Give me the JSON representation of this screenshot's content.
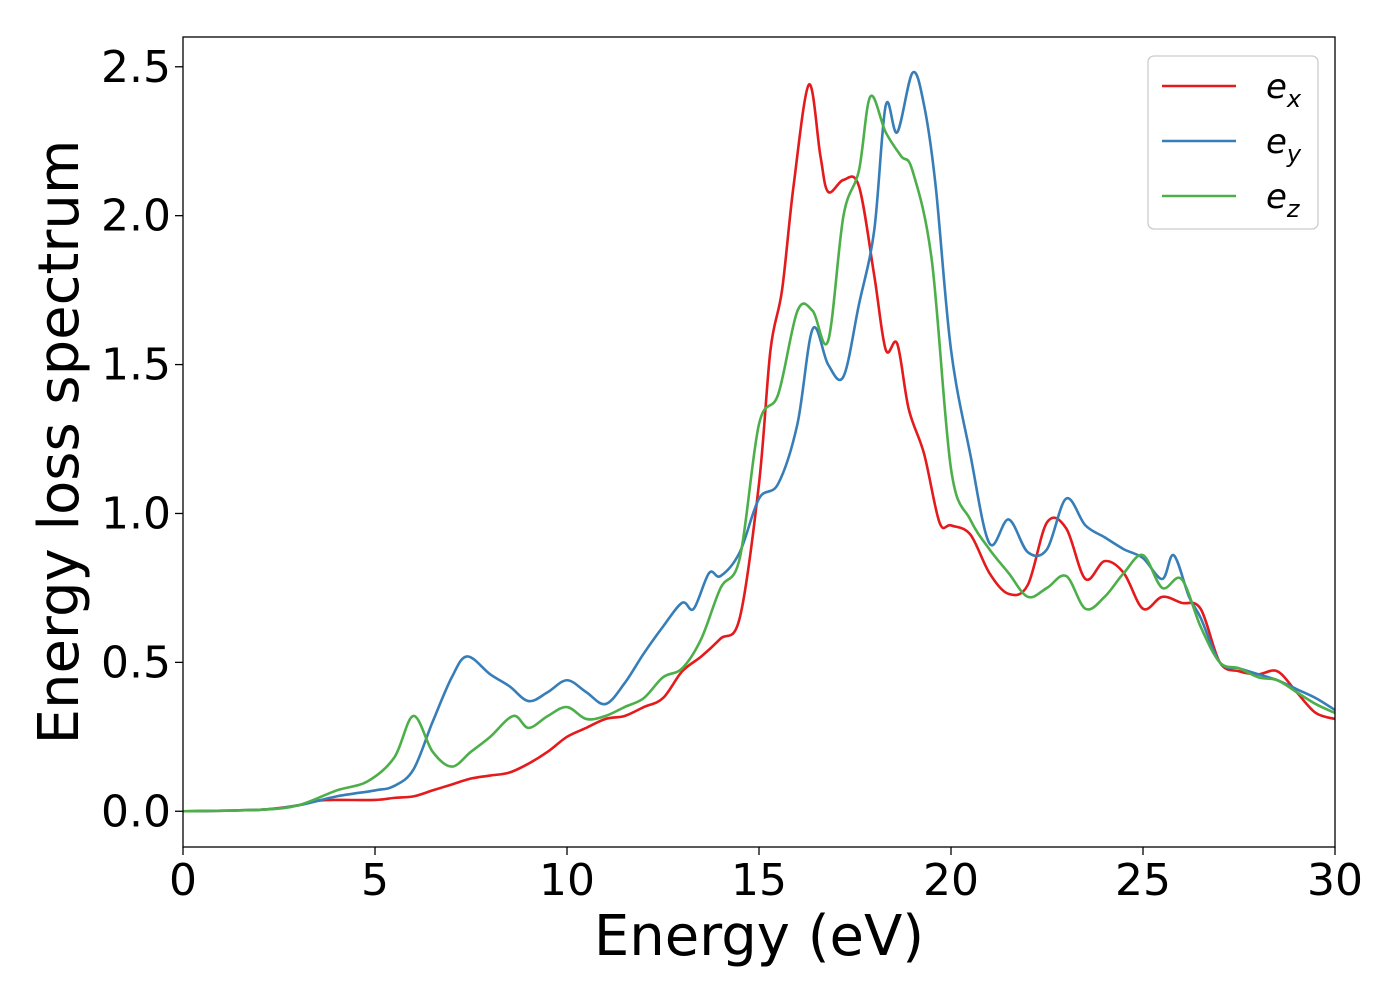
{
  "chart_data": {
    "type": "line",
    "title": "",
    "xlabel": "Energy (eV)",
    "ylabel": "Energy loss spectrum",
    "xlim": [
      0,
      30
    ],
    "ylim": [
      -0.12,
      2.6
    ],
    "xticks": [
      0,
      5,
      10,
      15,
      20,
      25,
      30
    ],
    "xtick_labels": [
      "0",
      "5",
      "10",
      "15",
      "20",
      "25",
      "30"
    ],
    "yticks": [
      0.0,
      0.5,
      1.0,
      1.5,
      2.0,
      2.5
    ],
    "ytick_labels": [
      "0.0",
      "0.5",
      "1.0",
      "1.5",
      "2.0",
      "2.5"
    ],
    "grid": false,
    "legend": "top-right",
    "series": [
      {
        "name": "e",
        "subscript": "x",
        "color": "#e41a1c",
        "points": [
          [
            0,
            0
          ],
          [
            2,
            0.005
          ],
          [
            3,
            0.02
          ],
          [
            3.5,
            0.035
          ],
          [
            4,
            0.038
          ],
          [
            5,
            0.038
          ],
          [
            5.5,
            0.045
          ],
          [
            6,
            0.05
          ],
          [
            6.5,
            0.07
          ],
          [
            7,
            0.09
          ],
          [
            7.5,
            0.11
          ],
          [
            8,
            0.12
          ],
          [
            8.5,
            0.13
          ],
          [
            9,
            0.16
          ],
          [
            9.5,
            0.2
          ],
          [
            10,
            0.25
          ],
          [
            10.5,
            0.28
          ],
          [
            11,
            0.31
          ],
          [
            11.5,
            0.32
          ],
          [
            12,
            0.35
          ],
          [
            12.5,
            0.38
          ],
          [
            13,
            0.47
          ],
          [
            13.5,
            0.52
          ],
          [
            14,
            0.58
          ],
          [
            14.5,
            0.65
          ],
          [
            15,
            1.1
          ],
          [
            15.3,
            1.55
          ],
          [
            15.6,
            1.75
          ],
          [
            15.9,
            2.1
          ],
          [
            16.3,
            2.44
          ],
          [
            16.6,
            2.2
          ],
          [
            16.8,
            2.08
          ],
          [
            17.2,
            2.12
          ],
          [
            17.6,
            2.1
          ],
          [
            18,
            1.8
          ],
          [
            18.3,
            1.55
          ],
          [
            18.6,
            1.57
          ],
          [
            18.9,
            1.35
          ],
          [
            19.3,
            1.2
          ],
          [
            19.7,
            0.97
          ],
          [
            20,
            0.96
          ],
          [
            20.5,
            0.93
          ],
          [
            21,
            0.8
          ],
          [
            21.5,
            0.73
          ],
          [
            22,
            0.76
          ],
          [
            22.5,
            0.97
          ],
          [
            23,
            0.95
          ],
          [
            23.5,
            0.78
          ],
          [
            24,
            0.84
          ],
          [
            24.5,
            0.8
          ],
          [
            25,
            0.68
          ],
          [
            25.5,
            0.72
          ],
          [
            26,
            0.7
          ],
          [
            26.5,
            0.68
          ],
          [
            27,
            0.5
          ],
          [
            27.5,
            0.47
          ],
          [
            28,
            0.46
          ],
          [
            28.5,
            0.47
          ],
          [
            29,
            0.4
          ],
          [
            29.5,
            0.33
          ],
          [
            30,
            0.31
          ]
        ]
      },
      {
        "name": "e",
        "subscript": "y",
        "color": "#377eb8",
        "points": [
          [
            0,
            0
          ],
          [
            2,
            0.005
          ],
          [
            3,
            0.02
          ],
          [
            4,
            0.05
          ],
          [
            5,
            0.07
          ],
          [
            5.5,
            0.085
          ],
          [
            6,
            0.14
          ],
          [
            6.5,
            0.3
          ],
          [
            7,
            0.45
          ],
          [
            7.4,
            0.52
          ],
          [
            8,
            0.46
          ],
          [
            8.5,
            0.42
          ],
          [
            9,
            0.37
          ],
          [
            9.5,
            0.4
          ],
          [
            10,
            0.44
          ],
          [
            10.5,
            0.4
          ],
          [
            11,
            0.36
          ],
          [
            11.5,
            0.43
          ],
          [
            12,
            0.53
          ],
          [
            12.5,
            0.62
          ],
          [
            13,
            0.7
          ],
          [
            13.3,
            0.68
          ],
          [
            13.7,
            0.8
          ],
          [
            14,
            0.79
          ],
          [
            14.5,
            0.87
          ],
          [
            15,
            1.05
          ],
          [
            15.5,
            1.1
          ],
          [
            16,
            1.3
          ],
          [
            16.4,
            1.62
          ],
          [
            16.8,
            1.5
          ],
          [
            17.2,
            1.46
          ],
          [
            17.6,
            1.7
          ],
          [
            18,
            1.95
          ],
          [
            18.3,
            2.37
          ],
          [
            18.6,
            2.28
          ],
          [
            19,
            2.48
          ],
          [
            19.3,
            2.37
          ],
          [
            19.6,
            2.1
          ],
          [
            20,
            1.55
          ],
          [
            20.5,
            1.2
          ],
          [
            21,
            0.9
          ],
          [
            21.5,
            0.98
          ],
          [
            22,
            0.87
          ],
          [
            22.5,
            0.88
          ],
          [
            23,
            1.05
          ],
          [
            23.5,
            0.96
          ],
          [
            24,
            0.92
          ],
          [
            24.5,
            0.88
          ],
          [
            25,
            0.85
          ],
          [
            25.5,
            0.78
          ],
          [
            25.8,
            0.86
          ],
          [
            26.2,
            0.72
          ],
          [
            26.5,
            0.65
          ],
          [
            27,
            0.5
          ],
          [
            27.5,
            0.48
          ],
          [
            28,
            0.46
          ],
          [
            28.5,
            0.44
          ],
          [
            29,
            0.41
          ],
          [
            29.5,
            0.38
          ],
          [
            30,
            0.34
          ]
        ]
      },
      {
        "name": "e",
        "subscript": "z",
        "color": "#4daf4a",
        "points": [
          [
            0,
            0
          ],
          [
            2,
            0.005
          ],
          [
            3,
            0.02
          ],
          [
            4,
            0.07
          ],
          [
            4.8,
            0.1
          ],
          [
            5.5,
            0.18
          ],
          [
            6,
            0.32
          ],
          [
            6.5,
            0.2
          ],
          [
            7,
            0.15
          ],
          [
            7.5,
            0.2
          ],
          [
            8,
            0.25
          ],
          [
            8.6,
            0.32
          ],
          [
            9,
            0.28
          ],
          [
            9.5,
            0.32
          ],
          [
            10,
            0.35
          ],
          [
            10.5,
            0.31
          ],
          [
            11,
            0.32
          ],
          [
            11.5,
            0.35
          ],
          [
            12,
            0.38
          ],
          [
            12.5,
            0.45
          ],
          [
            13,
            0.48
          ],
          [
            13.5,
            0.58
          ],
          [
            14,
            0.75
          ],
          [
            14.5,
            0.85
          ],
          [
            15,
            1.3
          ],
          [
            15.5,
            1.4
          ],
          [
            16,
            1.68
          ],
          [
            16.4,
            1.68
          ],
          [
            16.8,
            1.58
          ],
          [
            17.2,
            2.0
          ],
          [
            17.6,
            2.15
          ],
          [
            17.9,
            2.4
          ],
          [
            18.3,
            2.28
          ],
          [
            18.7,
            2.2
          ],
          [
            19,
            2.15
          ],
          [
            19.5,
            1.85
          ],
          [
            20,
            1.15
          ],
          [
            20.5,
            0.98
          ],
          [
            21,
            0.88
          ],
          [
            21.5,
            0.8
          ],
          [
            22,
            0.72
          ],
          [
            22.5,
            0.75
          ],
          [
            23,
            0.79
          ],
          [
            23.5,
            0.68
          ],
          [
            24,
            0.72
          ],
          [
            24.5,
            0.8
          ],
          [
            25,
            0.86
          ],
          [
            25.5,
            0.75
          ],
          [
            26,
            0.78
          ],
          [
            26.5,
            0.62
          ],
          [
            27,
            0.5
          ],
          [
            27.5,
            0.48
          ],
          [
            28,
            0.45
          ],
          [
            28.5,
            0.44
          ],
          [
            29,
            0.4
          ],
          [
            29.5,
            0.36
          ],
          [
            30,
            0.33
          ]
        ]
      }
    ]
  }
}
